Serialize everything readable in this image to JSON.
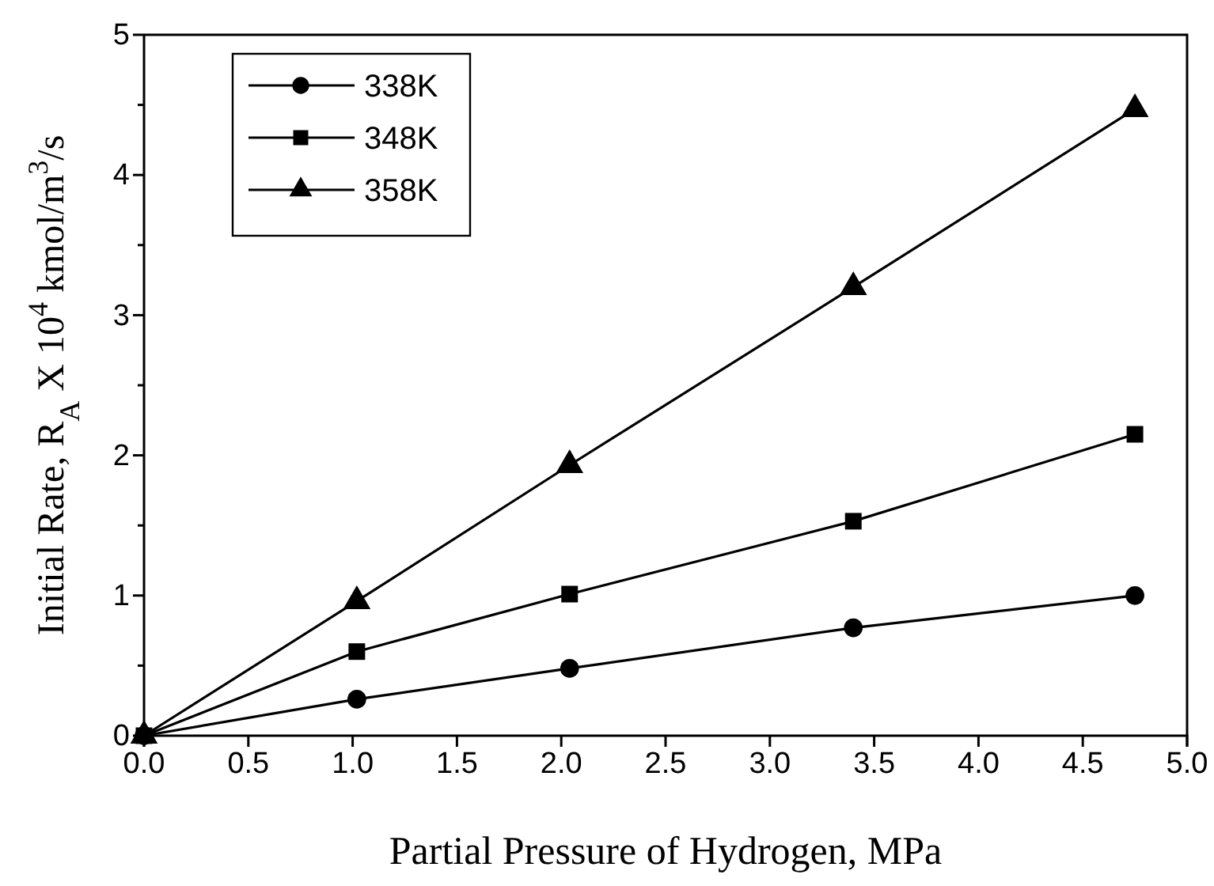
{
  "chart_data": {
    "type": "line",
    "xlabel": "Partial Pressure of Hydrogen, MPa",
    "ylabel": "Initial Rate, R$_{A}$ X 10$^{4}$ kmol/m$^{3}$/s",
    "x": [
      0,
      1.02,
      2.04,
      3.4,
      4.75
    ],
    "series": [
      {
        "name": "338K",
        "color": "#000000",
        "marker": "circle",
        "values": [
          0,
          0.26,
          0.48,
          0.77,
          1.0
        ]
      },
      {
        "name": "348K",
        "color": "#000000",
        "marker": "square",
        "values": [
          0,
          0.6,
          1.01,
          1.53,
          2.15
        ]
      },
      {
        "name": "358K",
        "color": "#000000",
        "marker": "triangle",
        "values": [
          0,
          0.96,
          1.93,
          3.2,
          4.47
        ]
      }
    ],
    "xlim": [
      0,
      5
    ],
    "xticks": [
      {
        "value": 0,
        "label": "0.0"
      },
      {
        "value": 0.5,
        "label": "0.5"
      },
      {
        "value": 1,
        "label": "1.0"
      },
      {
        "value": 1.5,
        "label": "1.5"
      },
      {
        "value": 2,
        "label": "2.0"
      },
      {
        "value": 2.5,
        "label": "2.5"
      },
      {
        "value": 3,
        "label": "3.0"
      },
      {
        "value": 3.5,
        "label": "3.5"
      },
      {
        "value": 4,
        "label": "4.0"
      },
      {
        "value": 4.5,
        "label": "4.5"
      },
      {
        "value": 5,
        "label": "5.0"
      }
    ],
    "ylim": [
      0,
      5
    ],
    "yticks": [
      0,
      {
        "value": 0.5,
        "label": null
      },
      1,
      {
        "value": 1.5,
        "label": null
      },
      2,
      {
        "value": 2.5,
        "label": null
      },
      3,
      {
        "value": 3.5,
        "label": null
      },
      4,
      {
        "value": 4.5,
        "label": null
      },
      5
    ],
    "legend": "top left",
    "line_style": "solid",
    "grid": false
  }
}
